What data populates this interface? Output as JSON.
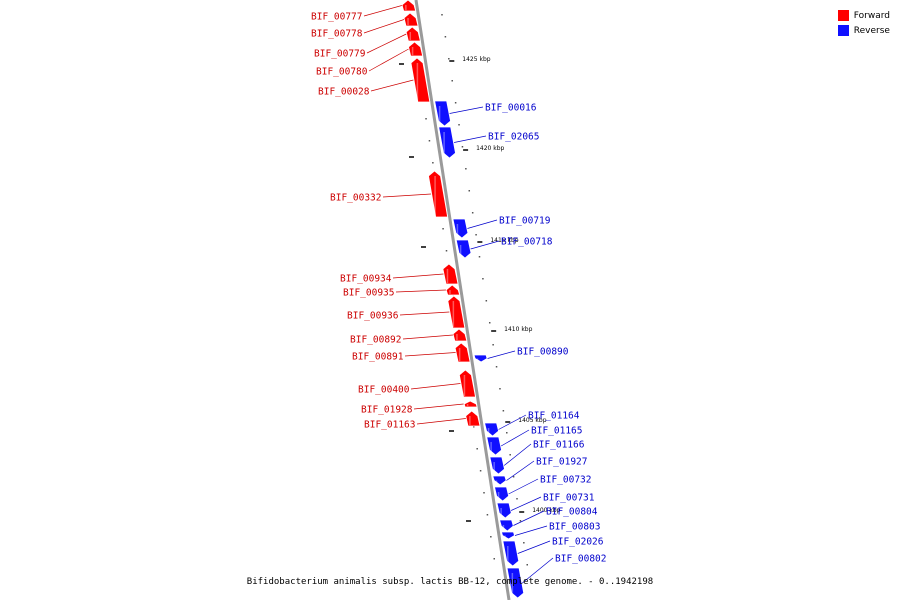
{
  "legend": [
    {
      "label": "Forward",
      "color": "#ff0000"
    },
    {
      "label": "Reverse",
      "color": "#1010ff"
    }
  ],
  "caption": "Bifidobacterium animalis subsp. lactis BB-12, complete genome. - 0..1942198",
  "colors": {
    "forward": "#ff0000",
    "reverse": "#1010ff",
    "backbone": "#9a9a9a",
    "forward_label": "#cc0000",
    "reverse_label": "#0000cc"
  },
  "ticks": [
    {
      "label": "1425 kbp"
    },
    {
      "label": "1420 kbp"
    },
    {
      "label": "1415 kbp"
    },
    {
      "label": "1410 kbp"
    },
    {
      "label": "1405 kbp"
    },
    {
      "label": "1400 kbp"
    }
  ],
  "genes": [
    {
      "name": "BIF_00777",
      "strand": "forward"
    },
    {
      "name": "BIF_00778",
      "strand": "forward"
    },
    {
      "name": "BIF_00779",
      "strand": "forward"
    },
    {
      "name": "BIF_00780",
      "strand": "forward"
    },
    {
      "name": "BIF_00028",
      "strand": "forward"
    },
    {
      "name": "BIF_00016",
      "strand": "reverse"
    },
    {
      "name": "BIF_02065",
      "strand": "reverse"
    },
    {
      "name": "BIF_00332",
      "strand": "forward"
    },
    {
      "name": "BIF_00719",
      "strand": "reverse"
    },
    {
      "name": "BIF_00718",
      "strand": "reverse"
    },
    {
      "name": "BIF_00934",
      "strand": "forward"
    },
    {
      "name": "BIF_00935",
      "strand": "forward"
    },
    {
      "name": "BIF_00936",
      "strand": "forward"
    },
    {
      "name": "BIF_00892",
      "strand": "forward"
    },
    {
      "name": "BIF_00891",
      "strand": "forward"
    },
    {
      "name": "BIF_00890",
      "strand": "reverse"
    },
    {
      "name": "BIF_00400",
      "strand": "forward"
    },
    {
      "name": "BIF_01928",
      "strand": "forward"
    },
    {
      "name": "BIF_01163",
      "strand": "forward"
    },
    {
      "name": "BIF_01164",
      "strand": "reverse"
    },
    {
      "name": "BIF_01165",
      "strand": "reverse"
    },
    {
      "name": "BIF_01166",
      "strand": "reverse"
    },
    {
      "name": "BIF_01927",
      "strand": "reverse"
    },
    {
      "name": "BIF_00732",
      "strand": "reverse"
    },
    {
      "name": "BIF_00731",
      "strand": "reverse"
    },
    {
      "name": "BIF_00804",
      "strand": "reverse"
    },
    {
      "name": "BIF_00803",
      "strand": "reverse"
    },
    {
      "name": "BIF_02026",
      "strand": "reverse"
    },
    {
      "name": "BIF_00802",
      "strand": "reverse"
    }
  ]
}
